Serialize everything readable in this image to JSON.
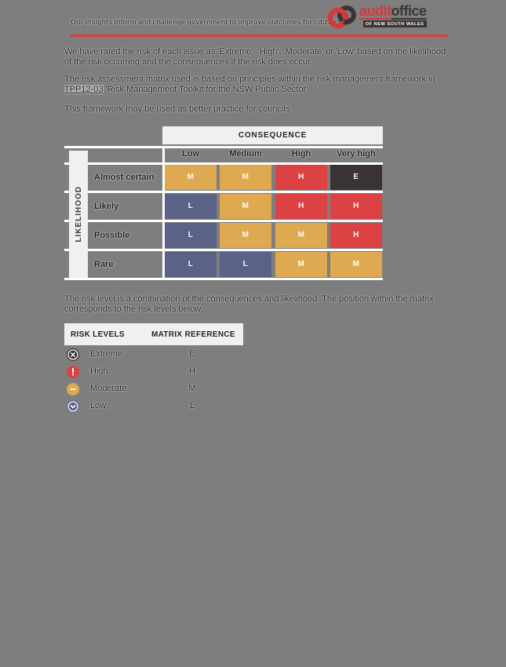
{
  "header": {
    "tagline": "Our insights inform and challenge government to improve outcomes for citizens",
    "logo": {
      "audit": "audit",
      "office": "office",
      "subtitle": "OF NEW SOUTH WALES"
    }
  },
  "paragraphs": {
    "p1": "We have rated the risk of each issue as 'Extreme', 'High', 'Moderate' or 'Low' based on the likelihood\nof the risk occurring and the consequences if the risk does occur.",
    "p2_before": "The risk assessment matrix used is based on principles within the risk management framework in\n",
    "p2_link": "TPP12-03",
    "p2_after": " 'Risk Management Toolkit for the NSW Public Sector'.",
    "p3": "This framework may be used as better practice for councils.",
    "p4": "The risk level is a combination of the consequences and likelihood. The position within the matrix\ncorresponds to the risk levels below."
  },
  "palette": {
    "extreme": "#3A3233",
    "high": "#DC4244",
    "moderate": "#DEA951",
    "low": "#5A6287",
    "accent_red": "#E03A3C",
    "logo_red": "#D6383B",
    "logo_dark": "#3B3435",
    "panel_light": "#F2F0EF",
    "page_gray": "#7E7E7E"
  },
  "matrix": {
    "consequence_label": "CONSEQUENCE",
    "likelihood_label": "LIKELIHOOD",
    "columns": [
      "Low",
      "Medium",
      "High",
      "Very high"
    ],
    "rows": [
      {
        "label": "Almost certain",
        "cells": [
          {
            "letter": "M",
            "level": "moderate"
          },
          {
            "letter": "M",
            "level": "moderate"
          },
          {
            "letter": "H",
            "level": "high"
          },
          {
            "letter": "E",
            "level": "extreme"
          }
        ]
      },
      {
        "label": "Likely",
        "cells": [
          {
            "letter": "L",
            "level": "low"
          },
          {
            "letter": "M",
            "level": "moderate"
          },
          {
            "letter": "H",
            "level": "high"
          },
          {
            "letter": "H",
            "level": "high"
          }
        ]
      },
      {
        "label": "Possible",
        "cells": [
          {
            "letter": "L",
            "level": "low"
          },
          {
            "letter": "M",
            "level": "moderate"
          },
          {
            "letter": "M",
            "level": "moderate"
          },
          {
            "letter": "H",
            "level": "high"
          }
        ]
      },
      {
        "label": "Rare",
        "cells": [
          {
            "letter": "L",
            "level": "low"
          },
          {
            "letter": "L",
            "level": "low"
          },
          {
            "letter": "M",
            "level": "moderate"
          },
          {
            "letter": "M",
            "level": "moderate"
          }
        ]
      }
    ]
  },
  "legend": {
    "headers": [
      "RISK LEVELS",
      "MATRIX REFERENCE"
    ],
    "rows": [
      {
        "icon": "x-circle-icon",
        "label": "Extreme:",
        "reference": "E",
        "level": "extreme"
      },
      {
        "icon": "exclamation-circle-icon",
        "label": "High:",
        "reference": "H",
        "level": "high"
      },
      {
        "icon": "minus-circle-icon",
        "label": "Moderate:",
        "reference": "M",
        "level": "moderate"
      },
      {
        "icon": "chevron-down-circle-icon",
        "label": "Low:",
        "reference": "L",
        "level": "low"
      }
    ]
  }
}
